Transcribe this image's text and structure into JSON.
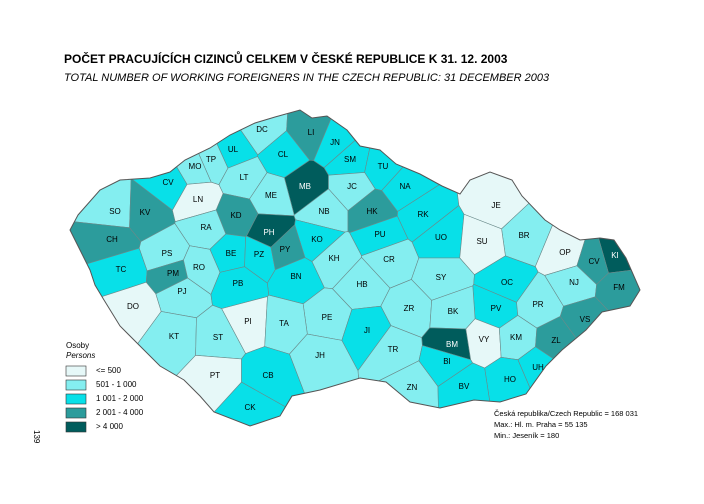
{
  "title": "POČET PRACUJÍCÍCH CIZINCŮ CELKEM V ČESKÉ REPUBLICE K 31. 12. 2003",
  "subtitle": "TOTAL NUMBER OF WORKING FOREIGNERS IN THE CZECH REPUBLIC: 31 DECEMBER 2003",
  "legend": {
    "title": "Osoby",
    "subtitle": "Persons",
    "items": [
      {
        "label": "<= 500",
        "color": "#e6f8f8"
      },
      {
        "label": "501 - 1 000",
        "color": "#84eef0"
      },
      {
        "label": "1 001 - 2 000",
        "color": "#08e0e8"
      },
      {
        "label": "2 001 - 4 000",
        "color": "#2c9c9c"
      },
      {
        "label": "> 4 000",
        "color": "#005c5c"
      }
    ]
  },
  "stats": [
    "Česká republika/Czech Republic = 168 031",
    "Max.: Hl. m. Praha = 55 135",
    "Min.: Jeseník = 180"
  ],
  "page_number": "139",
  "districts": [
    {
      "code": "DC",
      "class": 1
    },
    {
      "code": "LI",
      "class": 3
    },
    {
      "code": "JN",
      "class": 2
    },
    {
      "code": "CL",
      "class": 2
    },
    {
      "code": "UL",
      "class": 2
    },
    {
      "code": "TP",
      "class": 1
    },
    {
      "code": "MO",
      "class": 1
    },
    {
      "code": "SM",
      "class": 2
    },
    {
      "code": "TU",
      "class": 2
    },
    {
      "code": "CV",
      "class": 2
    },
    {
      "code": "LT",
      "class": 1
    },
    {
      "code": "MB",
      "class": 4
    },
    {
      "code": "JC",
      "class": 1
    },
    {
      "code": "NA",
      "class": 2
    },
    {
      "code": "SO",
      "class": 1
    },
    {
      "code": "KV",
      "class": 3
    },
    {
      "code": "LN",
      "class": 0
    },
    {
      "code": "ME",
      "class": 1
    },
    {
      "code": "NB",
      "class": 1
    },
    {
      "code": "HK",
      "class": 3
    },
    {
      "code": "RK",
      "class": 2
    },
    {
      "code": "JE",
      "class": 0
    },
    {
      "code": "KD",
      "class": 3
    },
    {
      "code": "RA",
      "class": 1
    },
    {
      "code": "PH",
      "class": 4
    },
    {
      "code": "BR",
      "class": 1
    },
    {
      "code": "CH",
      "class": 3
    },
    {
      "code": "KO",
      "class": 2
    },
    {
      "code": "PU",
      "class": 2
    },
    {
      "code": "UO",
      "class": 2
    },
    {
      "code": "SU",
      "class": 0
    },
    {
      "code": "PS",
      "class": 1
    },
    {
      "code": "BE",
      "class": 2
    },
    {
      "code": "PZ",
      "class": 2
    },
    {
      "code": "PY",
      "class": 3
    },
    {
      "code": "KH",
      "class": 1
    },
    {
      "code": "CR",
      "class": 1
    },
    {
      "code": "OP",
      "class": 0
    },
    {
      "code": "KI",
      "class": 4
    },
    {
      "code": "CV",
      "class": 3
    },
    {
      "code": "TC",
      "class": 2
    },
    {
      "code": "PM",
      "class": 3
    },
    {
      "code": "RO",
      "class": 1
    },
    {
      "code": "BN",
      "class": 2
    },
    {
      "code": "SY",
      "class": 1
    },
    {
      "code": "OC",
      "class": 2
    },
    {
      "code": "NJ",
      "class": 1
    },
    {
      "code": "FM",
      "class": 3
    },
    {
      "code": "PJ",
      "class": 1
    },
    {
      "code": "PB",
      "class": 2
    },
    {
      "code": "HB",
      "class": 1
    },
    {
      "code": "DO",
      "class": 0
    },
    {
      "code": "ZR",
      "class": 1
    },
    {
      "code": "PV",
      "class": 2
    },
    {
      "code": "PR",
      "class": 1
    },
    {
      "code": "VS",
      "class": 3
    },
    {
      "code": "PI",
      "class": 0
    },
    {
      "code": "PE",
      "class": 1
    },
    {
      "code": "BK",
      "class": 1
    },
    {
      "code": "KT",
      "class": 1
    },
    {
      "code": "ST",
      "class": 1
    },
    {
      "code": "TA",
      "class": 1
    },
    {
      "code": "JI",
      "class": 2
    },
    {
      "code": "BM",
      "class": 4
    },
    {
      "code": "VY",
      "class": 0
    },
    {
      "code": "KM",
      "class": 1
    },
    {
      "code": "ZL",
      "class": 3
    },
    {
      "code": "TR",
      "class": 1
    },
    {
      "code": "JH",
      "class": 1
    },
    {
      "code": "UH",
      "class": 2
    },
    {
      "code": "PT",
      "class": 0
    },
    {
      "code": "CB",
      "class": 2
    },
    {
      "code": "HO",
      "class": 2
    },
    {
      "code": "ZN",
      "class": 1
    },
    {
      "code": "BV",
      "class": 2
    },
    {
      "code": "BI",
      "class": 2
    },
    {
      "code": "CK",
      "class": 2
    }
  ]
}
